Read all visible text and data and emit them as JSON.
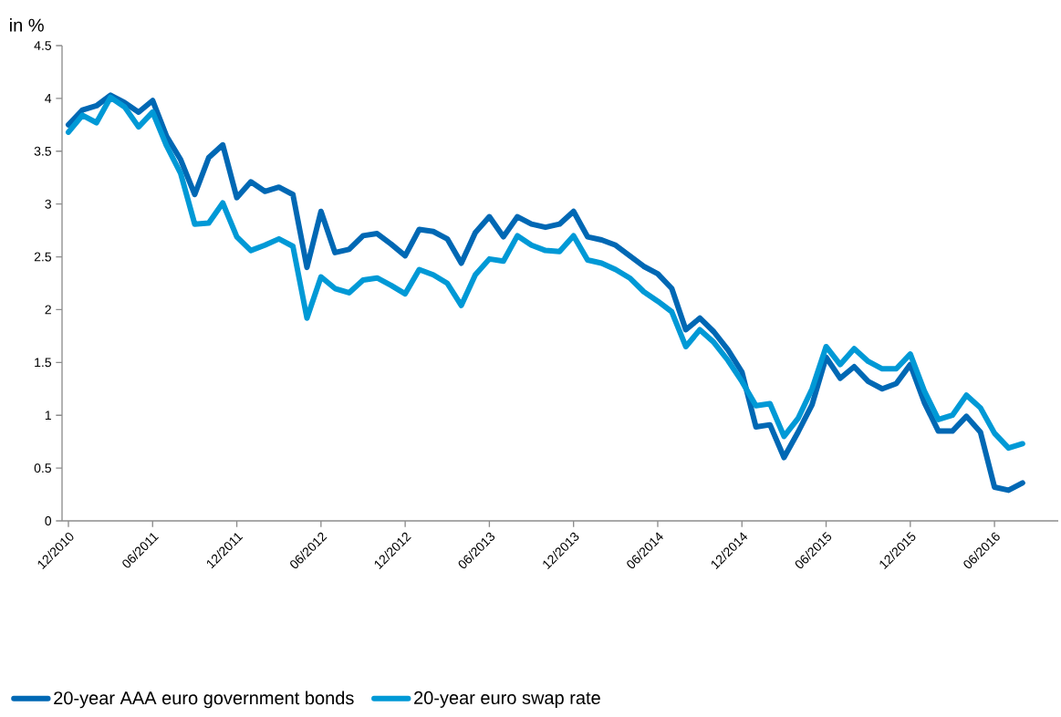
{
  "chart_data": {
    "type": "line",
    "ylabel": "in %",
    "categories": [
      "12/2010",
      null,
      null,
      null,
      null,
      null,
      "06/2011",
      null,
      null,
      null,
      null,
      null,
      "12/2011",
      null,
      null,
      null,
      null,
      null,
      "06/2012",
      null,
      null,
      null,
      null,
      null,
      "12/2012",
      null,
      null,
      null,
      null,
      null,
      "06/2013",
      null,
      null,
      null,
      null,
      null,
      "12/2013",
      null,
      null,
      null,
      null,
      null,
      "06/2014",
      null,
      null,
      null,
      null,
      null,
      "12/2014",
      null,
      null,
      null,
      null,
      null,
      "06/2015",
      null,
      null,
      null,
      null,
      null,
      "12/2015",
      null,
      null,
      null,
      null,
      null,
      "06/2016",
      null,
      null
    ],
    "series": [
      {
        "name": "20-year AAA euro government bonds",
        "color": "#0068b4",
        "values": [
          3.75,
          3.89,
          3.93,
          4.03,
          3.96,
          3.87,
          3.98,
          3.64,
          3.42,
          3.09,
          3.44,
          3.56,
          3.06,
          3.21,
          3.12,
          3.16,
          3.09,
          2.4,
          2.93,
          2.54,
          2.57,
          2.7,
          2.72,
          2.62,
          2.51,
          2.76,
          2.74,
          2.67,
          2.44,
          2.73,
          2.88,
          2.69,
          2.88,
          2.81,
          2.78,
          2.81,
          2.93,
          2.69,
          2.66,
          2.61,
          2.51,
          2.41,
          2.34,
          2.2,
          1.81,
          1.92,
          1.79,
          1.62,
          1.41,
          0.89,
          0.91,
          0.6,
          0.84,
          1.1,
          1.55,
          1.35,
          1.46,
          1.32,
          1.25,
          1.3,
          1.48,
          1.12,
          0.85,
          0.85,
          0.99,
          0.84,
          0.32,
          0.29,
          0.36
        ]
      },
      {
        "name": "20-year euro swap rate",
        "color": "#0099d6",
        "values": [
          3.68,
          3.84,
          3.77,
          4.01,
          3.92,
          3.73,
          3.87,
          3.55,
          3.29,
          2.81,
          2.82,
          3.01,
          2.69,
          2.56,
          2.61,
          2.67,
          2.6,
          1.92,
          2.31,
          2.2,
          2.16,
          2.28,
          2.3,
          2.23,
          2.15,
          2.38,
          2.33,
          2.25,
          2.04,
          2.33,
          2.48,
          2.46,
          2.7,
          2.61,
          2.56,
          2.55,
          2.7,
          2.47,
          2.44,
          2.38,
          2.3,
          2.17,
          2.08,
          1.98,
          1.65,
          1.81,
          1.69,
          1.52,
          1.32,
          1.09,
          1.11,
          0.8,
          0.97,
          1.25,
          1.65,
          1.48,
          1.63,
          1.51,
          1.44,
          1.44,
          1.58,
          1.23,
          0.96,
          1.0,
          1.19,
          1.07,
          0.83,
          0.69,
          0.73
        ]
      }
    ],
    "ylim": [
      0,
      4.5
    ],
    "yticks": [
      0,
      0.5,
      1,
      1.5,
      2,
      2.5,
      3,
      3.5,
      4,
      4.5
    ],
    "grid": false,
    "legend": "bottom left",
    "line_style": "solid"
  }
}
